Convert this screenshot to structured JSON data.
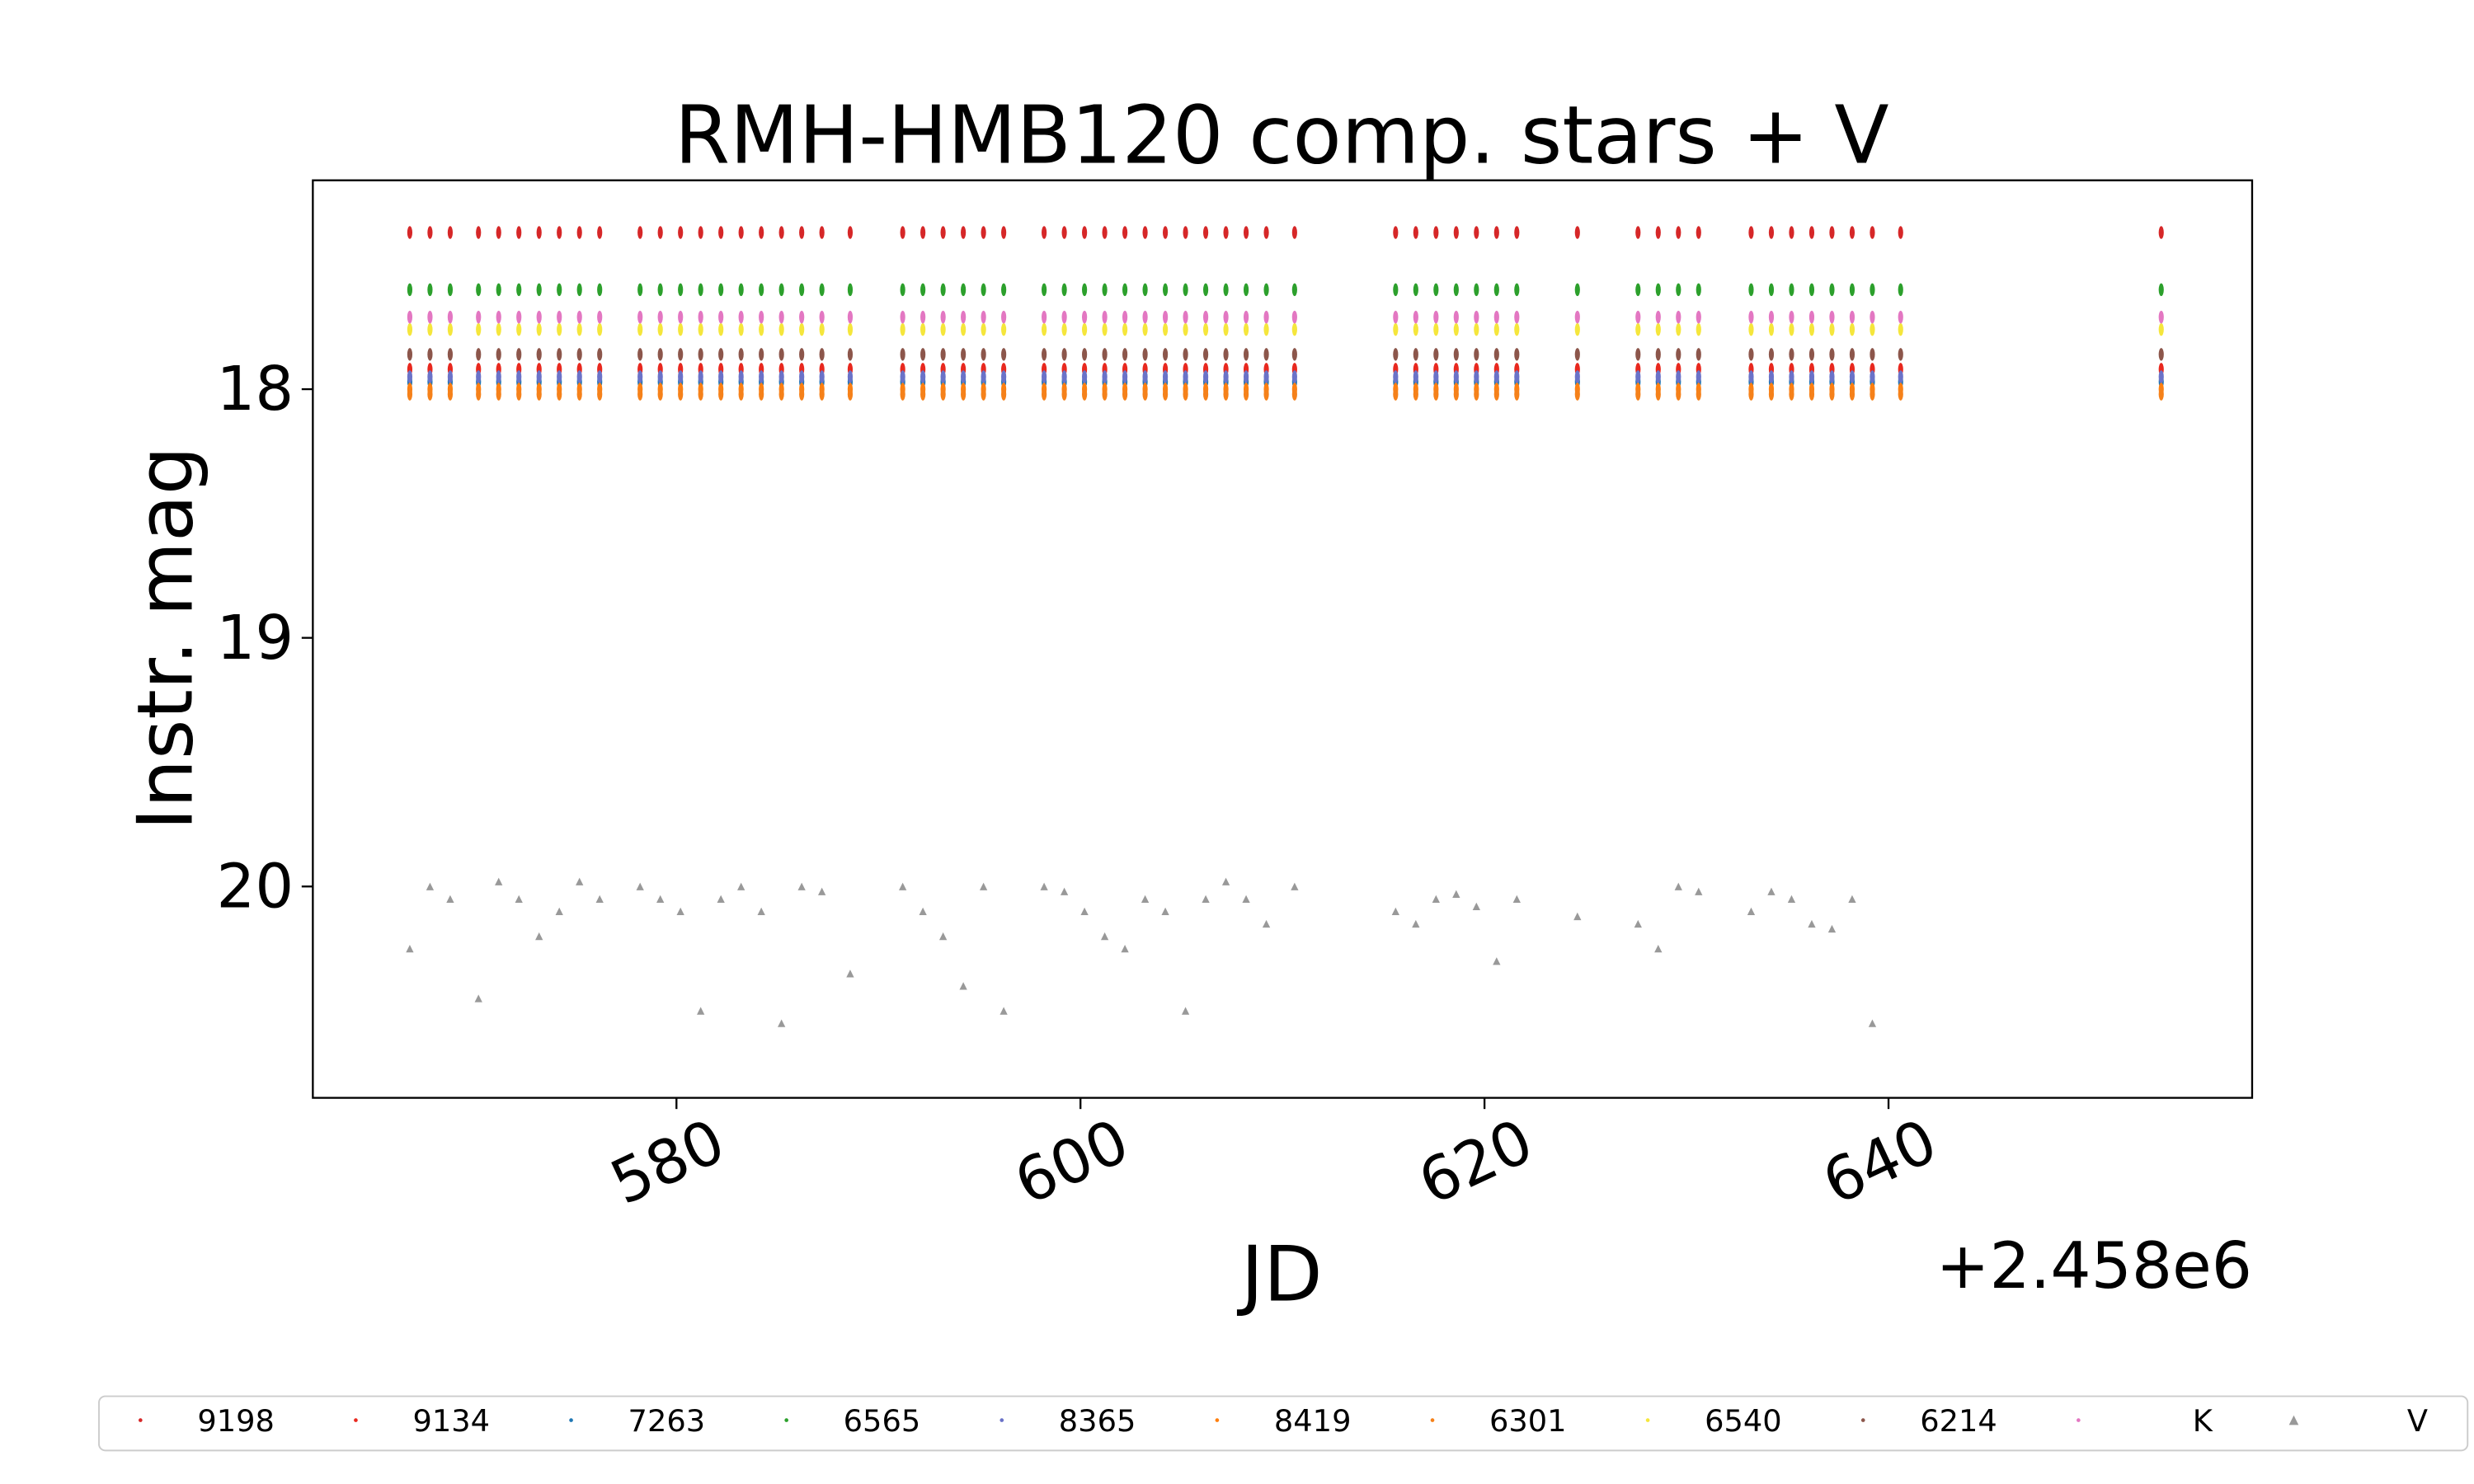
{
  "chart_data": {
    "type": "scatter",
    "title": "RMH-HMB120 comp. stars + V",
    "x_label": "JD",
    "y_label": "Instr. mag",
    "x_offset_label": "+2.458e6",
    "xlim": [
      562,
      658
    ],
    "ylim": [
      20.85,
      17.16
    ],
    "xticks": [
      580,
      600,
      620,
      640
    ],
    "yticks": [
      18,
      19,
      20
    ],
    "grid": false,
    "legend": "bottom",
    "x": [
      566.8,
      567.8,
      568.8,
      570.2,
      571.2,
      572.2,
      573.2,
      574.2,
      575.2,
      576.2,
      578.2,
      579.2,
      580.2,
      581.2,
      582.2,
      583.2,
      584.2,
      585.2,
      586.2,
      587.2,
      588.6,
      591.2,
      592.2,
      593.2,
      594.2,
      595.2,
      596.2,
      598.2,
      599.2,
      600.2,
      601.2,
      602.2,
      603.2,
      604.2,
      605.2,
      606.2,
      607.2,
      608.2,
      609.2,
      610.6,
      615.6,
      616.6,
      617.6,
      618.6,
      619.6,
      620.6,
      621.6,
      624.6,
      627.6,
      628.6,
      629.6,
      630.6,
      633.2,
      634.2,
      635.2,
      636.2,
      637.2,
      638.2,
      639.2,
      640.6,
      653.5
    ],
    "series": [
      {
        "name": "9198",
        "color": "#d62728",
        "marker": "dot",
        "values": [
          17.37,
          17.37,
          17.37,
          17.37,
          17.37,
          17.37,
          17.37,
          17.37,
          17.37,
          17.37,
          17.37,
          17.37,
          17.37,
          17.37,
          17.37,
          17.37,
          17.37,
          17.37,
          17.37,
          17.37,
          17.37,
          17.37,
          17.37,
          17.37,
          17.37,
          17.37,
          17.37,
          17.37,
          17.37,
          17.37,
          17.37,
          17.37,
          17.37,
          17.37,
          17.37,
          17.37,
          17.37,
          17.37,
          17.37,
          17.37,
          17.37,
          17.37,
          17.37,
          17.37,
          17.37,
          17.37,
          17.37,
          17.37,
          17.37,
          17.37,
          17.37,
          17.37,
          17.37,
          17.37,
          17.37,
          17.37,
          17.37,
          17.37,
          17.37,
          17.37,
          17.37
        ]
      },
      {
        "name": "9134",
        "color": "#e8281e",
        "marker": "dot",
        "values": [
          17.92,
          17.92,
          17.92,
          17.92,
          17.92,
          17.92,
          17.92,
          17.92,
          17.92,
          17.92,
          17.92,
          17.92,
          17.92,
          17.92,
          17.92,
          17.92,
          17.92,
          17.92,
          17.92,
          17.92,
          17.92,
          17.92,
          17.92,
          17.92,
          17.92,
          17.92,
          17.92,
          17.92,
          17.92,
          17.92,
          17.92,
          17.92,
          17.92,
          17.92,
          17.92,
          17.92,
          17.92,
          17.92,
          17.92,
          17.92,
          17.92,
          17.92,
          17.92,
          17.92,
          17.92,
          17.92,
          17.92,
          17.92,
          17.92,
          17.92,
          17.92,
          17.92,
          17.92,
          17.92,
          17.92,
          17.92,
          17.92,
          17.92,
          17.92,
          17.92,
          17.92
        ]
      },
      {
        "name": "7263",
        "color": "#1f77b4",
        "marker": "dot",
        "values": [
          17.97,
          17.97,
          17.97,
          17.97,
          17.97,
          17.97,
          17.97,
          17.97,
          17.97,
          17.97,
          17.97,
          17.97,
          17.97,
          17.97,
          17.97,
          17.97,
          17.97,
          17.97,
          17.97,
          17.97,
          17.97,
          17.97,
          17.97,
          17.97,
          17.97,
          17.97,
          17.97,
          17.97,
          17.97,
          17.97,
          17.97,
          17.97,
          17.97,
          17.97,
          17.97,
          17.97,
          17.97,
          17.97,
          17.97,
          17.97,
          17.97,
          17.97,
          17.97,
          17.97,
          17.97,
          17.97,
          17.97,
          17.97,
          17.97,
          17.97,
          17.97,
          17.97,
          17.97,
          17.97,
          17.97,
          17.97,
          17.97,
          17.97,
          17.97,
          17.97,
          17.97
        ]
      },
      {
        "name": "6565",
        "color": "#2ca02c",
        "marker": "dot",
        "values": [
          17.6,
          17.6,
          17.6,
          17.6,
          17.6,
          17.6,
          17.6,
          17.6,
          17.6,
          17.6,
          17.6,
          17.6,
          17.6,
          17.6,
          17.6,
          17.6,
          17.6,
          17.6,
          17.6,
          17.6,
          17.6,
          17.6,
          17.6,
          17.6,
          17.6,
          17.6,
          17.6,
          17.6,
          17.6,
          17.6,
          17.6,
          17.6,
          17.6,
          17.6,
          17.6,
          17.6,
          17.6,
          17.6,
          17.6,
          17.6,
          17.6,
          17.6,
          17.6,
          17.6,
          17.6,
          17.6,
          17.6,
          17.6,
          17.6,
          17.6,
          17.6,
          17.6,
          17.6,
          17.6,
          17.6,
          17.6,
          17.6,
          17.6,
          17.6,
          17.6,
          17.6
        ]
      },
      {
        "name": "8365",
        "color": "#6a72c8",
        "marker": "dot",
        "values": [
          17.95,
          17.95,
          17.95,
          17.95,
          17.95,
          17.95,
          17.95,
          17.95,
          17.95,
          17.95,
          17.95,
          17.95,
          17.95,
          17.95,
          17.95,
          17.95,
          17.95,
          17.95,
          17.95,
          17.95,
          17.95,
          17.95,
          17.95,
          17.95,
          17.95,
          17.95,
          17.95,
          17.95,
          17.95,
          17.95,
          17.95,
          17.95,
          17.95,
          17.95,
          17.95,
          17.95,
          17.95,
          17.95,
          17.95,
          17.95,
          17.95,
          17.95,
          17.95,
          17.95,
          17.95,
          17.95,
          17.95,
          17.95,
          17.95,
          17.95,
          17.95,
          17.95,
          17.95,
          17.95,
          17.95,
          17.95,
          17.95,
          17.95,
          17.95,
          17.95,
          17.95
        ]
      },
      {
        "name": "8419",
        "color": "#ff7f0e",
        "marker": "dot",
        "values": [
          18.0,
          18.0,
          18.0,
          18.0,
          18.0,
          18.0,
          18.0,
          18.0,
          18.0,
          18.0,
          18.0,
          18.0,
          18.0,
          18.0,
          18.0,
          18.0,
          18.0,
          18.0,
          18.0,
          18.0,
          18.0,
          18.0,
          18.0,
          18.0,
          18.0,
          18.0,
          18.0,
          18.0,
          18.0,
          18.0,
          18.0,
          18.0,
          18.0,
          18.0,
          18.0,
          18.0,
          18.0,
          18.0,
          18.0,
          18.0,
          18.0,
          18.0,
          18.0,
          18.0,
          18.0,
          18.0,
          18.0,
          18.0,
          18.0,
          18.0,
          18.0,
          18.0,
          18.0,
          18.0,
          18.0,
          18.0,
          18.0,
          18.0,
          18.0,
          18.0,
          18.0
        ]
      },
      {
        "name": "6301",
        "color": "#f5811a",
        "marker": "dot",
        "values": [
          18.02,
          18.02,
          18.02,
          18.02,
          18.02,
          18.02,
          18.02,
          18.02,
          18.02,
          18.02,
          18.02,
          18.02,
          18.02,
          18.02,
          18.02,
          18.02,
          18.02,
          18.02,
          18.02,
          18.02,
          18.02,
          18.02,
          18.02,
          18.02,
          18.02,
          18.02,
          18.02,
          18.02,
          18.02,
          18.02,
          18.02,
          18.02,
          18.02,
          18.02,
          18.02,
          18.02,
          18.02,
          18.02,
          18.02,
          18.02,
          18.02,
          18.02,
          18.02,
          18.02,
          18.02,
          18.02,
          18.02,
          18.02,
          18.02,
          18.02,
          18.02,
          18.02,
          18.02,
          18.02,
          18.02,
          18.02,
          18.02,
          18.02,
          18.02,
          18.02,
          18.02
        ]
      },
      {
        "name": "6540",
        "color": "#f5e63c",
        "marker": "dot",
        "values": [
          17.76,
          17.76,
          17.76,
          17.76,
          17.76,
          17.76,
          17.76,
          17.76,
          17.76,
          17.76,
          17.76,
          17.76,
          17.76,
          17.76,
          17.76,
          17.76,
          17.76,
          17.76,
          17.76,
          17.76,
          17.76,
          17.76,
          17.76,
          17.76,
          17.76,
          17.76,
          17.76,
          17.76,
          17.76,
          17.76,
          17.76,
          17.76,
          17.76,
          17.76,
          17.76,
          17.76,
          17.76,
          17.76,
          17.76,
          17.76,
          17.76,
          17.76,
          17.76,
          17.76,
          17.76,
          17.76,
          17.76,
          17.76,
          17.76,
          17.76,
          17.76,
          17.76,
          17.76,
          17.76,
          17.76,
          17.76,
          17.76,
          17.76,
          17.76,
          17.76,
          17.76
        ]
      },
      {
        "name": "6214",
        "color": "#8c564b",
        "marker": "dot",
        "values": [
          17.86,
          17.86,
          17.86,
          17.86,
          17.86,
          17.86,
          17.86,
          17.86,
          17.86,
          17.86,
          17.86,
          17.86,
          17.86,
          17.86,
          17.86,
          17.86,
          17.86,
          17.86,
          17.86,
          17.86,
          17.86,
          17.86,
          17.86,
          17.86,
          17.86,
          17.86,
          17.86,
          17.86,
          17.86,
          17.86,
          17.86,
          17.86,
          17.86,
          17.86,
          17.86,
          17.86,
          17.86,
          17.86,
          17.86,
          17.86,
          17.86,
          17.86,
          17.86,
          17.86,
          17.86,
          17.86,
          17.86,
          17.86,
          17.86,
          17.86,
          17.86,
          17.86,
          17.86,
          17.86,
          17.86,
          17.86,
          17.86,
          17.86,
          17.86,
          17.86,
          17.86
        ]
      },
      {
        "name": "K",
        "color": "#e377c2",
        "marker": "dot",
        "values": [
          17.71,
          17.71,
          17.71,
          17.71,
          17.71,
          17.71,
          17.71,
          17.71,
          17.71,
          17.71,
          17.71,
          17.71,
          17.71,
          17.71,
          17.71,
          17.71,
          17.71,
          17.71,
          17.71,
          17.71,
          17.71,
          17.71,
          17.71,
          17.71,
          17.71,
          17.71,
          17.71,
          17.71,
          17.71,
          17.71,
          17.71,
          17.71,
          17.71,
          17.71,
          17.71,
          17.71,
          17.71,
          17.71,
          17.71,
          17.71,
          17.71,
          17.71,
          17.71,
          17.71,
          17.71,
          17.71,
          17.71,
          17.71,
          17.71,
          17.71,
          17.71,
          17.71,
          17.71,
          17.71,
          17.71,
          17.71,
          17.71,
          17.71,
          17.71,
          17.71,
          17.71
        ]
      },
      {
        "name": "V",
        "color": "#999999",
        "marker": "triangle",
        "values": [
          20.25,
          20.0,
          20.05,
          20.45,
          19.98,
          20.05,
          20.2,
          20.1,
          19.98,
          20.05,
          20.0,
          20.05,
          20.1,
          20.5,
          20.05,
          20.0,
          20.1,
          20.55,
          20.0,
          20.02,
          20.35,
          20.0,
          20.1,
          20.2,
          20.4,
          20.0,
          20.5,
          20.0,
          20.02,
          20.1,
          20.2,
          20.25,
          20.05,
          20.1,
          20.5,
          20.05,
          19.98,
          20.05,
          20.15,
          20.0,
          20.1,
          20.15,
          20.05,
          20.03,
          20.08,
          20.3,
          20.05,
          20.12,
          20.15,
          20.25,
          20.0,
          20.02,
          20.1,
          20.02,
          20.05,
          20.15,
          20.17,
          20.05,
          20.55,
          null,
          null
        ]
      }
    ]
  }
}
